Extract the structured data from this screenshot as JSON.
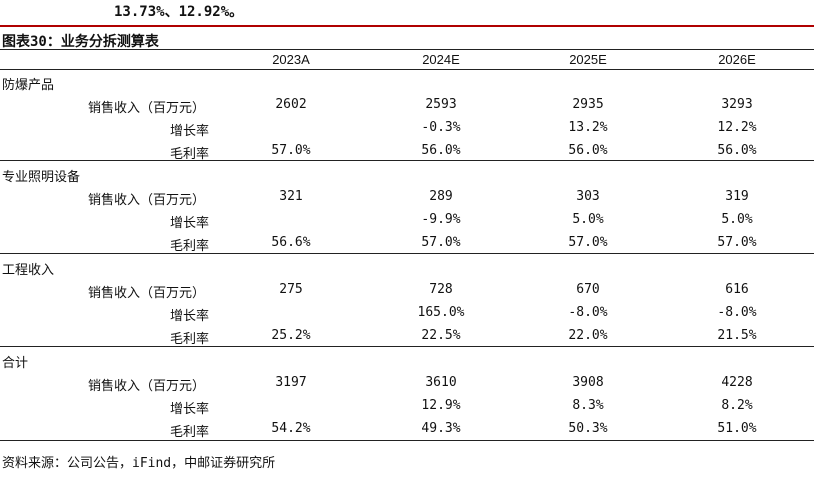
{
  "intro_text": "13.73%、12.92%。",
  "table_title": "图表30：业务分拆测算表",
  "years": [
    "2023A",
    "2024E",
    "2025E",
    "2026E"
  ],
  "sections": [
    {
      "name": "防爆产品",
      "rows": [
        {
          "label": "销售收入（百万元）",
          "values": [
            "2602",
            "2593",
            "2935",
            "3293"
          ]
        },
        {
          "label": "增长率",
          "values": [
            "",
            "-0.3%",
            "13.2%",
            "12.2%"
          ]
        },
        {
          "label": "毛利率",
          "values": [
            "57.0%",
            "56.0%",
            "56.0%",
            "56.0%"
          ]
        }
      ]
    },
    {
      "name": "专业照明设备",
      "rows": [
        {
          "label": "销售收入（百万元）",
          "values": [
            "321",
            "289",
            "303",
            "319"
          ]
        },
        {
          "label": "增长率",
          "values": [
            "",
            "-9.9%",
            "5.0%",
            "5.0%"
          ]
        },
        {
          "label": "毛利率",
          "values": [
            "56.6%",
            "57.0%",
            "57.0%",
            "57.0%"
          ]
        }
      ]
    },
    {
      "name": "工程收入",
      "rows": [
        {
          "label": "销售收入（百万元）",
          "values": [
            "275",
            "728",
            "670",
            "616"
          ]
        },
        {
          "label": "增长率",
          "values": [
            "",
            "165.0%",
            "-8.0%",
            "-8.0%"
          ]
        },
        {
          "label": "毛利率",
          "values": [
            "25.2%",
            "22.5%",
            "22.0%",
            "21.5%"
          ]
        }
      ]
    },
    {
      "name": "合计",
      "rows": [
        {
          "label": "销售收入（百万元）",
          "values": [
            "3197",
            "3610",
            "3908",
            "4228"
          ]
        },
        {
          "label": "增长率",
          "values": [
            "",
            "12.9%",
            "8.3%",
            "8.2%"
          ]
        },
        {
          "label": "毛利率",
          "values": [
            "54.2%",
            "49.3%",
            "50.3%",
            "51.0%"
          ]
        }
      ]
    }
  ],
  "source_note": "资料来源：公司公告，iFind，中邮证券研究所",
  "colors": {
    "accent_rule": "#b00000",
    "rule": "#222222",
    "text": "#111111"
  }
}
